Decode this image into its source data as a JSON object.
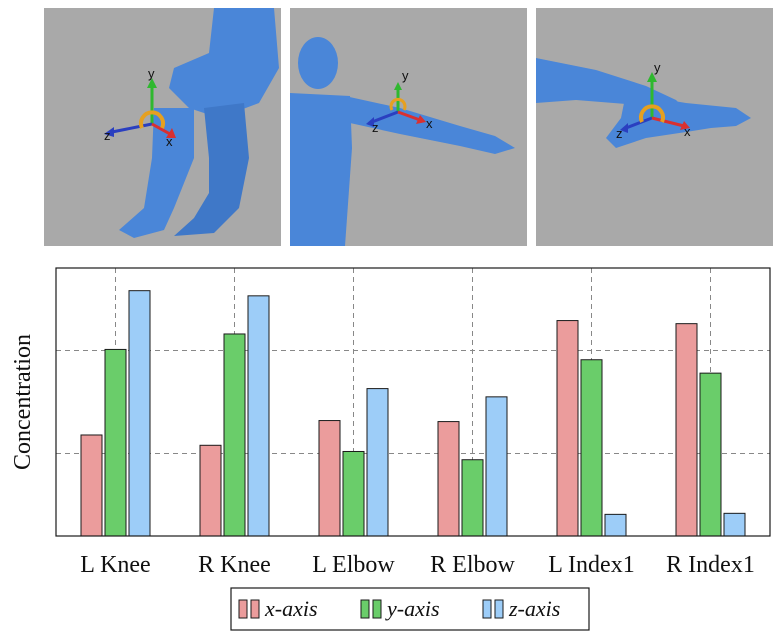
{
  "panels": [
    {
      "name": "Knee",
      "axis_labels": {
        "x": "x",
        "y": "y",
        "z": "z"
      }
    },
    {
      "name": "Elbow",
      "axis_labels": {
        "x": "x",
        "y": "y",
        "z": "z"
      }
    },
    {
      "name": "Index1",
      "axis_labels": {
        "x": "x",
        "y": "y",
        "z": "z"
      }
    }
  ],
  "colors": {
    "x_axis": "#eb9c9c",
    "y_axis": "#6acd6a",
    "z_axis": "#9dcdf8",
    "arrow_x": "#d93030",
    "arrow_y": "#2fb82f",
    "arrow_z": "#2a3fc0",
    "rotation": "#e6a020",
    "body": "#4a86d8",
    "panel_bg": "#a9a9a9"
  },
  "chart_data": {
    "type": "bar",
    "categories": [
      "L Knee",
      "R Knee",
      "L Elbow",
      "R Elbow",
      "L Index1",
      "R Index1"
    ],
    "series": [
      {
        "name": "x-axis",
        "values": [
          0.98,
          0.88,
          1.12,
          1.11,
          2.09,
          2.06
        ]
      },
      {
        "name": "y-axis",
        "values": [
          1.81,
          1.96,
          0.82,
          0.74,
          1.71,
          1.58
        ]
      },
      {
        "name": "z-axis",
        "values": [
          2.38,
          2.33,
          1.43,
          1.35,
          0.21,
          0.22
        ]
      }
    ],
    "ylabel": "Concentration",
    "ylim": [
      0,
      2.6
    ],
    "grid": true,
    "legend": "bottom"
  }
}
